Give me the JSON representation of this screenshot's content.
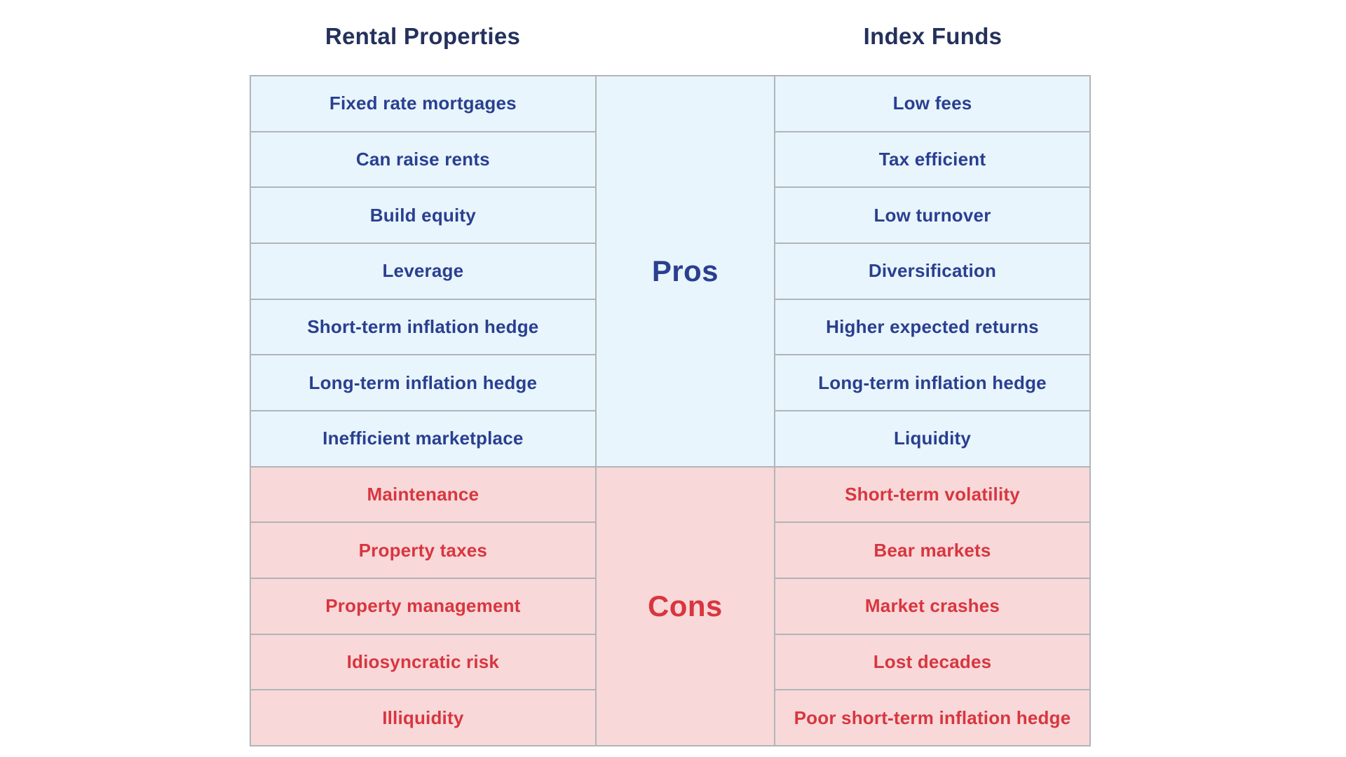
{
  "chart_data": {
    "type": "table",
    "title": "",
    "columns": [
      "Rental Properties",
      "Index Funds"
    ],
    "legend_position": "none",
    "grid": true,
    "row_groups": [
      {
        "label": "Pros",
        "rows": [
          [
            "Fixed rate mortgages",
            "Low fees"
          ],
          [
            "Can raise rents",
            "Tax efficient"
          ],
          [
            "Build equity",
            "Low turnover"
          ],
          [
            "Leverage",
            "Diversification"
          ],
          [
            "Short-term inflation hedge",
            "Higher expected returns"
          ],
          [
            "Long-term inflation hedge",
            "Long-term inflation hedge"
          ],
          [
            "Inefficient marketplace",
            "Liquidity"
          ]
        ]
      },
      {
        "label": "Cons",
        "rows": [
          [
            "Maintenance",
            "Short-term volatility"
          ],
          [
            "Property taxes",
            "Bear markets"
          ],
          [
            "Property management",
            "Market crashes"
          ],
          [
            "Idiosyncratic risk",
            "Lost decades"
          ],
          [
            "Illiquidity",
            "Poor short-term inflation hedge"
          ]
        ]
      }
    ]
  },
  "colors": {
    "pros_bg": "#e8f5fd",
    "cons_bg": "#f8d8d9",
    "pros_text": "#2a3f8f",
    "cons_text": "#d8363f",
    "header_text": "#24315c",
    "border": "#b1b5b7",
    "page_bg": "#ffffff"
  }
}
